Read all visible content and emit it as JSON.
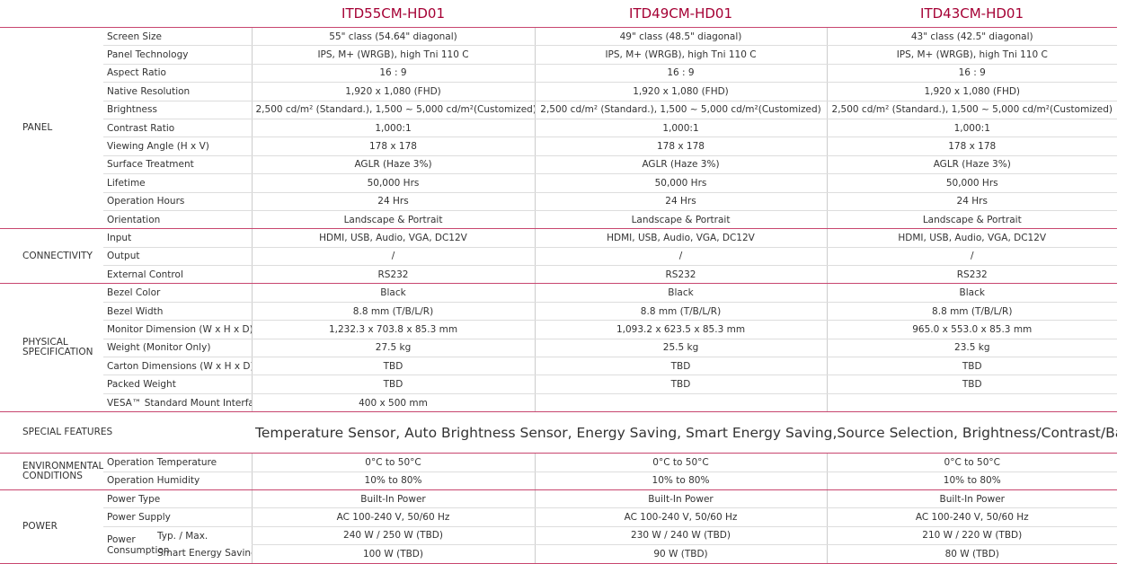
{
  "header": {
    "models": [
      "ITD55CM-HD01",
      "ITD49CM-HD01",
      "ITD43CM-HD01"
    ]
  },
  "sections": [
    {
      "name": "PANEL",
      "rows": [
        {
          "label": "Screen Size",
          "values": [
            "55\" class (54.64\" diagonal)",
            "49\" class (48.5\" diagonal)",
            "43\" class (42.5\" diagonal)"
          ]
        },
        {
          "label": "Panel Technology",
          "values": [
            "IPS, M+ (WRGB), high Tni 110 C",
            "IPS, M+ (WRGB), high Tni 110 C",
            "IPS, M+ (WRGB), high Tni 110 C"
          ]
        },
        {
          "label": "Aspect Ratio",
          "values": [
            "16 : 9",
            "16 : 9",
            "16 : 9"
          ]
        },
        {
          "label": "Native Resolution",
          "values": [
            "1,920 x 1,080 (FHD)",
            "1,920 x 1,080 (FHD)",
            "1,920 x 1,080 (FHD)"
          ]
        },
        {
          "label": "Brightness",
          "values": [
            "2,500 cd/m² (Standard.), 1,500 ~ 5,000 cd/m²(Customized)",
            "2,500 cd/m² (Standard.), 1,500 ~ 5,000 cd/m²(Customized)",
            "2,500 cd/m² (Standard.), 1,500 ~ 5,000 cd/m²(Customized)"
          ]
        },
        {
          "label": "Contrast Ratio",
          "values": [
            "1,000:1",
            "1,000:1",
            "1,000:1"
          ]
        },
        {
          "label": "Viewing Angle (H x V)",
          "values": [
            "178 x 178",
            "178 x 178",
            "178 x 178"
          ]
        },
        {
          "label": "Surface Treatment",
          "values": [
            "AGLR (Haze 3%)",
            "AGLR (Haze 3%)",
            "AGLR (Haze 3%)"
          ]
        },
        {
          "label": "Lifetime",
          "values": [
            "50,000 Hrs",
            "50,000 Hrs",
            "50,000 Hrs"
          ]
        },
        {
          "label": "Operation Hours",
          "values": [
            "24 Hrs",
            "24 Hrs",
            "24 Hrs"
          ]
        },
        {
          "label": "Orientation",
          "values": [
            "Landscape & Portrait",
            "Landscape & Portrait",
            "Landscape & Portrait"
          ]
        }
      ]
    },
    {
      "name": "CONNECTIVITY",
      "rows": [
        {
          "label": "Input",
          "values": [
            "HDMI, USB, Audio, VGA, DC12V",
            "HDMI, USB, Audio, VGA, DC12V",
            "HDMI, USB, Audio, VGA, DC12V"
          ]
        },
        {
          "label": "Output",
          "values": [
            "/",
            "/",
            "/"
          ]
        },
        {
          "label": "External Control",
          "values": [
            "RS232",
            "RS232",
            "RS232"
          ]
        }
      ]
    },
    {
      "name": "PHYSICAL SPECIFICATION",
      "rows": [
        {
          "label": "Bezel Color",
          "values": [
            "Black",
            "Black",
            "Black"
          ]
        },
        {
          "label": "Bezel Width",
          "values": [
            "8.8 mm (T/B/L/R)",
            "8.8 mm (T/B/L/R)",
            "8.8 mm (T/B/L/R)"
          ]
        },
        {
          "label": "Monitor Dimension (W x H x D)",
          "values": [
            "1,232.3 x 703.8 x 85.3 mm",
            "1,093.2 x 623.5 x 85.3 mm",
            "965.0 x 553.0 x 85.3 mm"
          ]
        },
        {
          "label": "Weight (Monitor Only)",
          "values": [
            "27.5 kg",
            "25.5 kg",
            "23.5 kg"
          ]
        },
        {
          "label": "Carton Dimensions (W x H x D)",
          "values": [
            "TBD",
            "TBD",
            "TBD"
          ]
        },
        {
          "label": "Packed Weight",
          "values": [
            "TBD",
            "TBD",
            "TBD"
          ]
        },
        {
          "label": "VESA™ Standard Mount Interface",
          "values": [
            "400 x 500 mm"
          ]
        }
      ]
    },
    {
      "name": "SPECIAL FEATURES",
      "span": "Temperature Sensor, Auto Brightness Sensor, Energy Saving, Smart Energy Saving,Source Selection, Brightness/Contrast/Backlight Select"
    },
    {
      "name": "ENVIRONMENTAL CONDITIONS",
      "rows": [
        {
          "label": "Operation Temperature",
          "values": [
            "0°C to 50°C",
            "0°C to 50°C",
            "0°C to 50°C"
          ]
        },
        {
          "label": "Operation Humidity",
          "values": [
            "10% to 80%",
            "10% to 80%",
            "10% to 80%"
          ]
        }
      ]
    },
    {
      "name": "POWER",
      "rows": [
        {
          "label": "Power Type",
          "values": [
            "Built-In Power",
            "Built-In Power",
            "Built-In Power"
          ]
        },
        {
          "label": "Power Supply",
          "values": [
            "AC 100-240 V, 50/60 Hz",
            "AC 100-240 V, 50/60 Hz",
            "AC 100-240 V, 50/60 Hz"
          ]
        },
        {
          "label": "Typ. / Max.",
          "values": [
            "240 W / 250 W (TBD)",
            "230 W / 240 W (TBD)",
            "210 W / 220 W (TBD)"
          ]
        },
        {
          "label": "Smart Energy Saving",
          "values": [
            "100 W (TBD)",
            "90 W (TBD)",
            "80 W (TBD)"
          ]
        }
      ],
      "group": {
        "label": "Power Consumption",
        "from": 2
      }
    }
  ]
}
